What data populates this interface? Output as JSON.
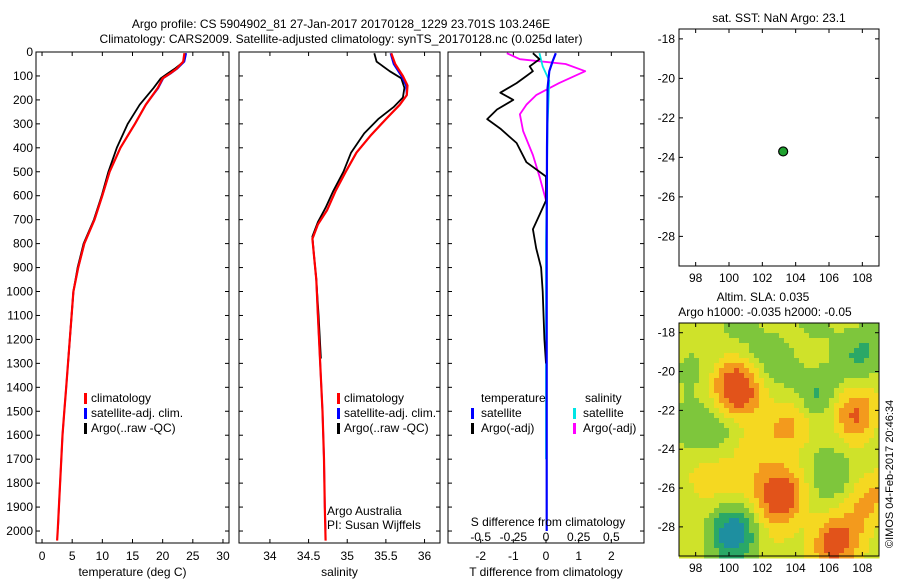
{
  "title": {
    "line1": "Argo profile: CS 5904902_81 27-Jan-2017 20170128_1229 23.701S 103.246E",
    "line2": "Climatology: CARS2009. Satellite-adjusted climatology: synTS_20170128.nc (0.025d later)"
  },
  "depth_ticks": [
    0,
    100,
    200,
    300,
    400,
    500,
    600,
    700,
    800,
    900,
    1000,
    1100,
    1200,
    1300,
    1400,
    1500,
    1600,
    1700,
    1800,
    1900,
    2000
  ],
  "colors": {
    "climatology": "#ff0000",
    "satellite": "#0000ff",
    "argo": "#000000",
    "sat_salinity": "#00e5e5",
    "argo_salinity": "#ff00ff",
    "marker": "#1fa12f"
  },
  "chart_data": [
    {
      "type": "line",
      "id": "temperature",
      "xlabel": "temperature (deg C)",
      "xlim": [
        -1,
        31
      ],
      "ylim": [
        0,
        2050
      ],
      "x_ticks": [
        0,
        5,
        10,
        15,
        20,
        25,
        30
      ],
      "legend": {
        "position": "lower-center",
        "entries": [
          "climatology",
          "satellite-adj. clim.",
          "Argo(..raw -QC)"
        ]
      },
      "series": [
        {
          "name": "climatology",
          "points": [
            [
              23.6,
              5
            ],
            [
              23.4,
              40
            ],
            [
              22.3,
              70
            ],
            [
              21.2,
              90
            ],
            [
              20.0,
              110
            ],
            [
              19.2,
              150
            ],
            [
              17.2,
              220
            ],
            [
              15.4,
              300
            ],
            [
              13.0,
              400
            ],
            [
              11.2,
              500
            ],
            [
              10.0,
              600
            ],
            [
              8.7,
              700
            ],
            [
              7.0,
              800
            ],
            [
              6.0,
              900
            ],
            [
              5.2,
              1000
            ],
            [
              4.9,
              1100
            ],
            [
              4.6,
              1200
            ],
            [
              4.3,
              1300
            ],
            [
              4.0,
              1400
            ],
            [
              3.7,
              1500
            ],
            [
              3.4,
              1600
            ],
            [
              3.2,
              1700
            ],
            [
              3.0,
              1800
            ],
            [
              2.8,
              1900
            ],
            [
              2.6,
              2000
            ],
            [
              2.5,
              2040
            ]
          ]
        },
        {
          "name": "satellite-adj. clim.",
          "points": [
            [
              23.9,
              5
            ],
            [
              23.6,
              40
            ],
            [
              22.4,
              70
            ],
            [
              21.3,
              90
            ],
            [
              20.1,
              110
            ],
            [
              19.3,
              150
            ],
            [
              17.2,
              220
            ],
            [
              15.4,
              300
            ],
            [
              13.0,
              400
            ],
            [
              11.2,
              500
            ],
            [
              10.0,
              600
            ],
            [
              8.7,
              700
            ],
            [
              7.0,
              800
            ],
            [
              6.0,
              900
            ],
            [
              5.2,
              1000
            ],
            [
              4.9,
              1100
            ],
            [
              4.6,
              1200
            ],
            [
              4.3,
              1300
            ],
            [
              4.0,
              1400
            ],
            [
              3.7,
              1500
            ],
            [
              3.4,
              1600
            ],
            [
              3.2,
              1700
            ],
            [
              3.0,
              1800
            ],
            [
              2.8,
              1900
            ],
            [
              2.65,
              1990
            ]
          ]
        },
        {
          "name": "Argo(..raw -QC)",
          "points": [
            [
              23.8,
              5
            ],
            [
              23.5,
              40
            ],
            [
              22.0,
              70
            ],
            [
              20.8,
              90
            ],
            [
              19.7,
              110
            ],
            [
              18.5,
              150
            ],
            [
              16.2,
              220
            ],
            [
              14.2,
              300
            ],
            [
              12.4,
              400
            ],
            [
              11.0,
              500
            ],
            [
              9.9,
              600
            ],
            [
              8.6,
              700
            ],
            [
              6.9,
              800
            ],
            [
              5.9,
              900
            ],
            [
              5.2,
              1000
            ],
            [
              4.9,
              1100
            ],
            [
              4.6,
              1200
            ],
            [
              4.3,
              1300
            ]
          ]
        }
      ]
    },
    {
      "type": "line",
      "id": "salinity",
      "xlabel": "salinity",
      "xlim": [
        33.6,
        36.2
      ],
      "ylim": [
        0,
        2050
      ],
      "x_ticks": [
        34,
        34.5,
        35,
        35.5,
        36
      ],
      "legend": {
        "position": "lower-center",
        "entries": [
          "climatology",
          "satellite-adj. clim.",
          "Argo(..raw -QC)"
        ]
      },
      "annotation": [
        "Argo Australia",
        "PI: Susan Wijffels"
      ],
      "series": [
        {
          "name": "climatology",
          "points": [
            [
              35.57,
              5
            ],
            [
              35.62,
              50
            ],
            [
              35.72,
              100
            ],
            [
              35.78,
              140
            ],
            [
              35.77,
              180
            ],
            [
              35.68,
              220
            ],
            [
              35.5,
              280
            ],
            [
              35.3,
              350
            ],
            [
              35.12,
              420
            ],
            [
              34.98,
              500
            ],
            [
              34.85,
              580
            ],
            [
              34.74,
              660
            ],
            [
              34.62,
              720
            ],
            [
              34.55,
              780
            ],
            [
              34.57,
              850
            ],
            [
              34.6,
              950
            ],
            [
              34.62,
              1100
            ],
            [
              34.65,
              1300
            ],
            [
              34.68,
              1500
            ],
            [
              34.7,
              1700
            ],
            [
              34.71,
              1900
            ],
            [
              34.72,
              2040
            ]
          ]
        },
        {
          "name": "satellite-adj. clim.",
          "points": [
            [
              35.56,
              5
            ],
            [
              35.6,
              50
            ],
            [
              35.7,
              100
            ],
            [
              35.76,
              140
            ],
            [
              35.77,
              180
            ],
            [
              35.68,
              220
            ],
            [
              35.5,
              280
            ],
            [
              35.3,
              350
            ],
            [
              35.12,
              420
            ],
            [
              34.98,
              500
            ],
            [
              34.85,
              580
            ],
            [
              34.74,
              660
            ],
            [
              34.62,
              720
            ],
            [
              34.55,
              780
            ],
            [
              34.57,
              850
            ],
            [
              34.6,
              950
            ],
            [
              34.62,
              1100
            ],
            [
              34.65,
              1300
            ],
            [
              34.68,
              1500
            ],
            [
              34.7,
              1700
            ],
            [
              34.71,
              1900
            ],
            [
              34.72,
              2000
            ]
          ]
        },
        {
          "name": "Argo(..raw -QC)",
          "points": [
            [
              35.35,
              5
            ],
            [
              35.38,
              40
            ],
            [
              35.55,
              80
            ],
            [
              35.7,
              110
            ],
            [
              35.74,
              150
            ],
            [
              35.72,
              190
            ],
            [
              35.6,
              230
            ],
            [
              35.4,
              280
            ],
            [
              35.22,
              340
            ],
            [
              35.05,
              420
            ],
            [
              34.95,
              500
            ],
            [
              34.82,
              580
            ],
            [
              34.72,
              650
            ],
            [
              34.62,
              710
            ],
            [
              34.55,
              770
            ],
            [
              34.57,
              850
            ],
            [
              34.6,
              950
            ],
            [
              34.63,
              1100
            ],
            [
              34.66,
              1280
            ]
          ]
        }
      ]
    },
    {
      "type": "line",
      "id": "difference",
      "xlabel": "T difference from climatology",
      "xlabel_top": "S difference from climatology",
      "xlim": [
        -3,
        3
      ],
      "ylim": [
        0,
        2050
      ],
      "x_ticks": [
        -2,
        -1,
        0,
        1,
        2
      ],
      "x_ticks_top": [
        -0.5,
        -0.25,
        0,
        0.25,
        0.5
      ],
      "legend": {
        "position": "lower-center",
        "headers": [
          "temperature",
          "salinity"
        ],
        "entries": [
          "satellite",
          "Argo(-adj)",
          "satellite",
          "Argo(-adj)"
        ]
      },
      "series": [
        {
          "name": "temperature satellite",
          "points": [
            [
              0.3,
              5
            ],
            [
              0.2,
              40
            ],
            [
              0.1,
              80
            ],
            [
              0.05,
              150
            ],
            [
              0.03,
              400
            ],
            [
              0.02,
              800
            ],
            [
              0.02,
              2000
            ]
          ]
        },
        {
          "name": "temperature Argo(-adj)",
          "points": [
            [
              -0.4,
              5
            ],
            [
              -0.2,
              30
            ],
            [
              -0.5,
              60
            ],
            [
              -0.4,
              80
            ],
            [
              -0.6,
              100
            ],
            [
              -0.9,
              130
            ],
            [
              -1.4,
              170
            ],
            [
              -1.0,
              200
            ],
            [
              -1.5,
              240
            ],
            [
              -1.8,
              280
            ],
            [
              -1.4,
              320
            ],
            [
              -0.9,
              380
            ],
            [
              -0.6,
              460
            ],
            [
              0.0,
              520
            ],
            [
              0.0,
              620
            ],
            [
              -0.2,
              680
            ],
            [
              -0.4,
              740
            ],
            [
              -0.3,
              820
            ],
            [
              -0.15,
              900
            ],
            [
              -0.1,
              1000
            ],
            [
              -0.05,
              1200
            ],
            [
              0.0,
              1300
            ]
          ]
        },
        {
          "name": "salinity satellite",
          "points": [
            [
              -0.2,
              5
            ],
            [
              -0.1,
              60
            ],
            [
              0.1,
              120
            ],
            [
              0.05,
              300
            ],
            [
              0.0,
              800
            ],
            [
              0.0,
              1700
            ]
          ]
        },
        {
          "name": "salinity Argo(-adj)",
          "points": [
            [
              -1.2,
              5
            ],
            [
              -0.8,
              30
            ],
            [
              0.6,
              50
            ],
            [
              1.2,
              80
            ],
            [
              0.4,
              130
            ],
            [
              -0.3,
              180
            ],
            [
              -0.6,
              220
            ],
            [
              -0.8,
              260
            ],
            [
              -0.7,
              330
            ],
            [
              -0.4,
              430
            ],
            [
              -0.2,
              520
            ],
            [
              0.0,
              620
            ]
          ]
        }
      ]
    },
    {
      "type": "scatter",
      "id": "location",
      "title": "sat. SST: NaN Argo: 23.1",
      "xlim": [
        97,
        109
      ],
      "ylim": [
        -29.5,
        -17.5
      ],
      "x_ticks": [
        98,
        100,
        102,
        104,
        106,
        108
      ],
      "y_ticks": [
        -18,
        -20,
        -22,
        -24,
        -26,
        -28
      ],
      "points": [
        [
          103.25,
          -23.7
        ]
      ]
    },
    {
      "type": "heatmap",
      "id": "sla",
      "title_line1": "Altim. SLA: 0.035",
      "title_line2": "Argo h1000: -0.035 h2000: -0.05",
      "xlim": [
        97,
        109
      ],
      "ylim": [
        -29.5,
        -17.5
      ],
      "x_ticks": [
        98,
        100,
        102,
        104,
        106,
        108
      ],
      "y_ticks": [
        -18,
        -20,
        -22,
        -24,
        -26,
        -28
      ],
      "colorscale": [
        "#1e8fa0",
        "#2aa867",
        "#7ec63c",
        "#cfe22a",
        "#f5d821",
        "#f39a1d",
        "#e2531a"
      ],
      "blobs": [
        {
          "lon": 100.5,
          "lat": -21.0,
          "v": 0.9
        },
        {
          "lon": 103.0,
          "lat": -26.3,
          "v": 1.0
        },
        {
          "lon": 106.2,
          "lat": -28.8,
          "v": 0.8
        },
        {
          "lon": 107.5,
          "lat": -22.0,
          "v": 0.6
        },
        {
          "lon": 104.2,
          "lat": -22.6,
          "v": 0.5
        },
        {
          "lon": 98.5,
          "lat": -25.5,
          "v": 0.4
        },
        {
          "lon": 108.2,
          "lat": -26.5,
          "v": 0.5
        },
        {
          "lon": 101.5,
          "lat": -24.0,
          "v": 0.3
        },
        {
          "lon": 105.2,
          "lat": -21.2,
          "v": -0.5
        },
        {
          "lon": 98.4,
          "lat": -23.0,
          "v": -0.4
        },
        {
          "lon": 100.2,
          "lat": -28.3,
          "v": -0.6
        },
        {
          "lon": 105.8,
          "lat": -25.5,
          "v": -0.4
        },
        {
          "lon": 108.0,
          "lat": -18.8,
          "v": -0.3
        },
        {
          "lon": 102.0,
          "lat": -18.8,
          "v": -0.2
        }
      ]
    }
  ],
  "credit": "©IMOS 04-Feb-2017 20:46:34"
}
